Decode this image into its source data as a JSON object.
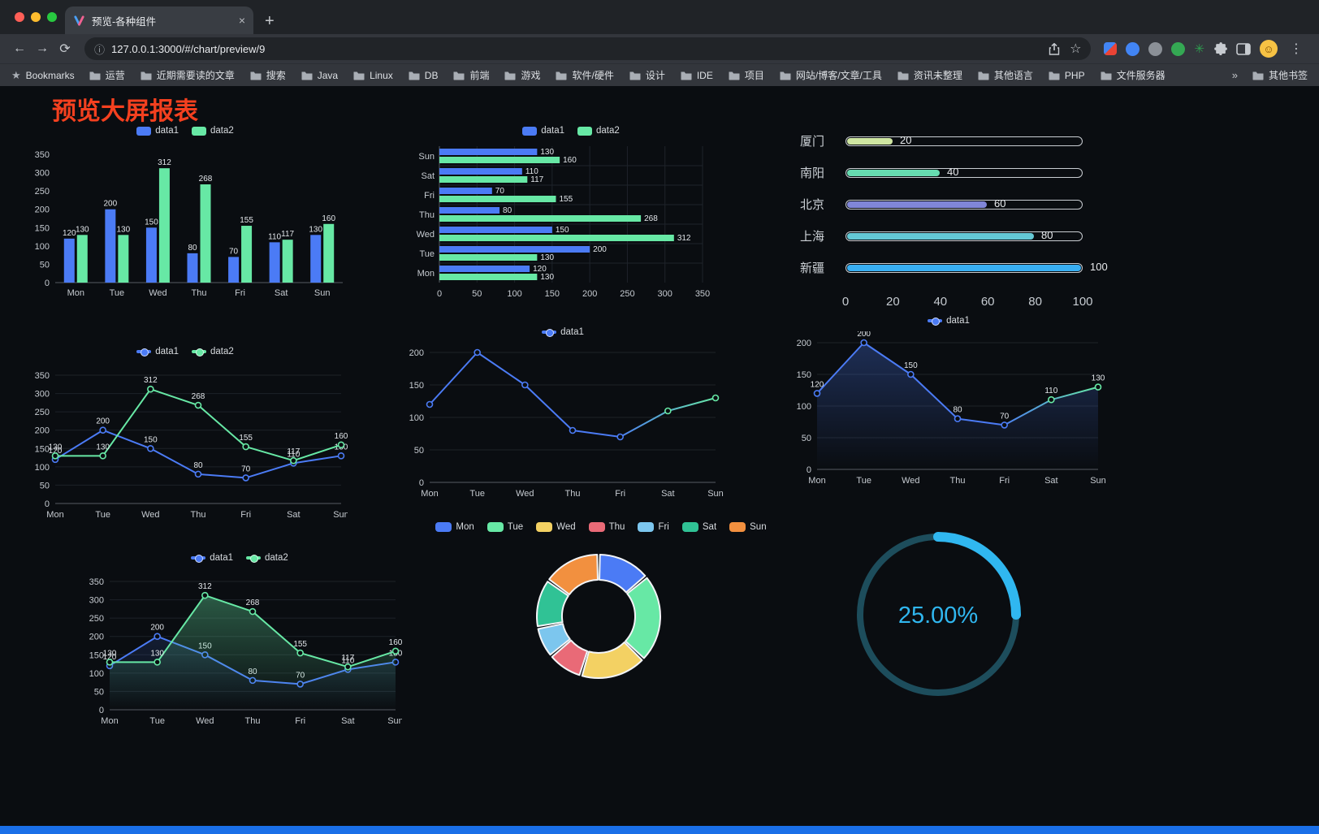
{
  "window": {
    "tab_title": "预览-各种组件",
    "new_tab_label": "+",
    "close_tab_label": "×"
  },
  "nav": {
    "url": "127.0.0.1:3000/#/chart/preview/9",
    "glyphs": {
      "back": "←",
      "forward": "→",
      "reload": "⟳",
      "site_info": "ⓘ",
      "bookmark_star": "☆",
      "menu": "⋮",
      "avatar_face": "☺",
      "bookmarks_star": "★"
    }
  },
  "extensions": [
    {
      "name": "red-blue-extension-icon",
      "type": "square",
      "color": "#4285f4",
      "color2": "#ea4335"
    },
    {
      "name": "blue-drop-extension-icon",
      "type": "dot",
      "color": "#4285f4"
    },
    {
      "name": "gray-extension-icon",
      "type": "dot",
      "color": "#8b9097"
    },
    {
      "name": "green-extension-icon",
      "type": "dot",
      "color": "#34a853"
    },
    {
      "name": "green-star-extension-icon",
      "type": "star",
      "color": "#2e9e4f",
      "glyph": "✳"
    }
  ],
  "bookmarks": {
    "label": "Bookmarks",
    "items": [
      "运营",
      "近期需要读的文章",
      "搜索",
      "Java",
      "Linux",
      "DB",
      "前端",
      "游戏",
      "软件/硬件",
      "设计",
      "IDE",
      "项目",
      "网站/博客/文章/工具",
      "资讯未整理",
      "其他语言",
      "PHP",
      "文件服务器"
    ],
    "overflow": "»",
    "other_label": "其他书签"
  },
  "page": {
    "title": "预览大屏报表",
    "title_color": "#f4401f",
    "background": "#0a0d11",
    "footer_color": "#1a6fe8",
    "axis_text_color": "#c6cbd1",
    "value_label_color": "#e2e6ea"
  },
  "chart_data": [
    {
      "id": "grouped-bar",
      "type": "bar",
      "legend": [
        "data1",
        "data2"
      ],
      "categories": [
        "Mon",
        "Tue",
        "Wed",
        "Thu",
        "Fri",
        "Sat",
        "Sun"
      ],
      "series": [
        {
          "name": "data1",
          "color": "#4b7bf5",
          "values": [
            120,
            200,
            150,
            80,
            70,
            110,
            130
          ]
        },
        {
          "name": "data2",
          "color": "#67e8a5",
          "values": [
            130,
            130,
            312,
            268,
            155,
            117,
            160
          ]
        }
      ],
      "ylim": [
        0,
        350
      ],
      "ytick": 50,
      "labels": true
    },
    {
      "id": "grouped-horizontal-bar",
      "type": "bar",
      "orientation": "horizontal",
      "legend": [
        "data1",
        "data2"
      ],
      "categories": [
        "Mon",
        "Tue",
        "Wed",
        "Thu",
        "Fri",
        "Sat",
        "Sun"
      ],
      "series": [
        {
          "name": "data1",
          "color": "#4b7bf5",
          "values": [
            120,
            200,
            150,
            80,
            70,
            110,
            130
          ]
        },
        {
          "name": "data2",
          "color": "#67e8a5",
          "values": [
            130,
            130,
            312,
            268,
            155,
            117,
            160
          ]
        }
      ],
      "xlim": [
        0,
        350
      ],
      "xtick": 50,
      "labels": true
    },
    {
      "id": "city-progress-bars",
      "type": "bar",
      "subtype": "capsule-progress",
      "xlim": [
        0,
        100
      ],
      "xticks": [
        0,
        20,
        40,
        60,
        80,
        100
      ],
      "rows": [
        {
          "label": "厦门",
          "value": 20,
          "color": "#cfe6a2"
        },
        {
          "label": "南阳",
          "value": 40,
          "color": "#66dcb1"
        },
        {
          "label": "北京",
          "value": 60,
          "color": "#8086d8"
        },
        {
          "label": "上海",
          "value": 80,
          "color": "#64c8d5"
        },
        {
          "label": "新疆",
          "value": 100,
          "color": "#38aef2"
        }
      ]
    },
    {
      "id": "two-series-line",
      "type": "line",
      "legend": [
        "data1",
        "data2"
      ],
      "categories": [
        "Mon",
        "Tue",
        "Wed",
        "Thu",
        "Fri",
        "Sat",
        "Sun"
      ],
      "series": [
        {
          "name": "data1",
          "color": "#4b7bf5",
          "values": [
            120,
            200,
            150,
            80,
            70,
            110,
            130
          ]
        },
        {
          "name": "data2",
          "color": "#67e8a5",
          "values": [
            130,
            130,
            312,
            268,
            155,
            117,
            160
          ]
        }
      ],
      "ylim": [
        0,
        350
      ],
      "ytick": 50,
      "labels": true
    },
    {
      "id": "single-line",
      "type": "line",
      "legend": [
        "data1"
      ],
      "categories": [
        "Mon",
        "Tue",
        "Wed",
        "Thu",
        "Fri",
        "Sat",
        "Sun"
      ],
      "series": [
        {
          "name": "data1",
          "color": "#4b7bf5",
          "color_end": "#67e8a5",
          "values": [
            120,
            200,
            150,
            80,
            70,
            110,
            130
          ]
        }
      ],
      "ylim": [
        0,
        200
      ],
      "ytick": 50,
      "labels": false
    },
    {
      "id": "single-area-line",
      "type": "area",
      "legend": [
        "data1"
      ],
      "categories": [
        "Mon",
        "Tue",
        "Wed",
        "Thu",
        "Fri",
        "Sat",
        "Sun"
      ],
      "series": [
        {
          "name": "data1",
          "color": "#4b7bf5",
          "color_end": "#67e8a5",
          "area": true,
          "area_opacity": 0.3,
          "values": [
            120,
            200,
            150,
            80,
            70,
            110,
            130
          ]
        }
      ],
      "ylim": [
        0,
        200
      ],
      "ytick": 50,
      "labels": true
    },
    {
      "id": "two-series-area-line",
      "type": "area",
      "legend": [
        "data1",
        "data2"
      ],
      "categories": [
        "Mon",
        "Tue",
        "Wed",
        "Thu",
        "Fri",
        "Sat",
        "Sun"
      ],
      "series": [
        {
          "name": "data1",
          "color": "#4b7bf5",
          "area": true,
          "area_opacity": 0.15,
          "values": [
            120,
            200,
            150,
            80,
            70,
            110,
            130
          ]
        },
        {
          "name": "data2",
          "color": "#67e8a5",
          "area": true,
          "area_opacity": 0.35,
          "values": [
            130,
            130,
            312,
            268,
            155,
            117,
            160
          ]
        }
      ],
      "ylim": [
        0,
        350
      ],
      "ytick": 50,
      "labels": true
    },
    {
      "id": "weekday-donut",
      "type": "pie",
      "donut": true,
      "legend_position": "top",
      "slices": [
        {
          "name": "Mon",
          "value": 120,
          "color": "#4b7bf5"
        },
        {
          "name": "Tue",
          "value": 200,
          "color": "#67e8a5"
        },
        {
          "name": "Wed",
          "value": 150,
          "color": "#f3d163"
        },
        {
          "name": "Thu",
          "value": 80,
          "color": "#e96a77"
        },
        {
          "name": "Fri",
          "value": 70,
          "color": "#7cc6ee"
        },
        {
          "name": "Sat",
          "value": 110,
          "color": "#30c295"
        },
        {
          "name": "Sun",
          "value": 130,
          "color": "#f2903f"
        }
      ]
    },
    {
      "id": "percent-gauge",
      "type": "gauge",
      "value": 25,
      "display": "25.00%",
      "color": "#30b7f0",
      "track_color": "#1d4d5c"
    }
  ]
}
